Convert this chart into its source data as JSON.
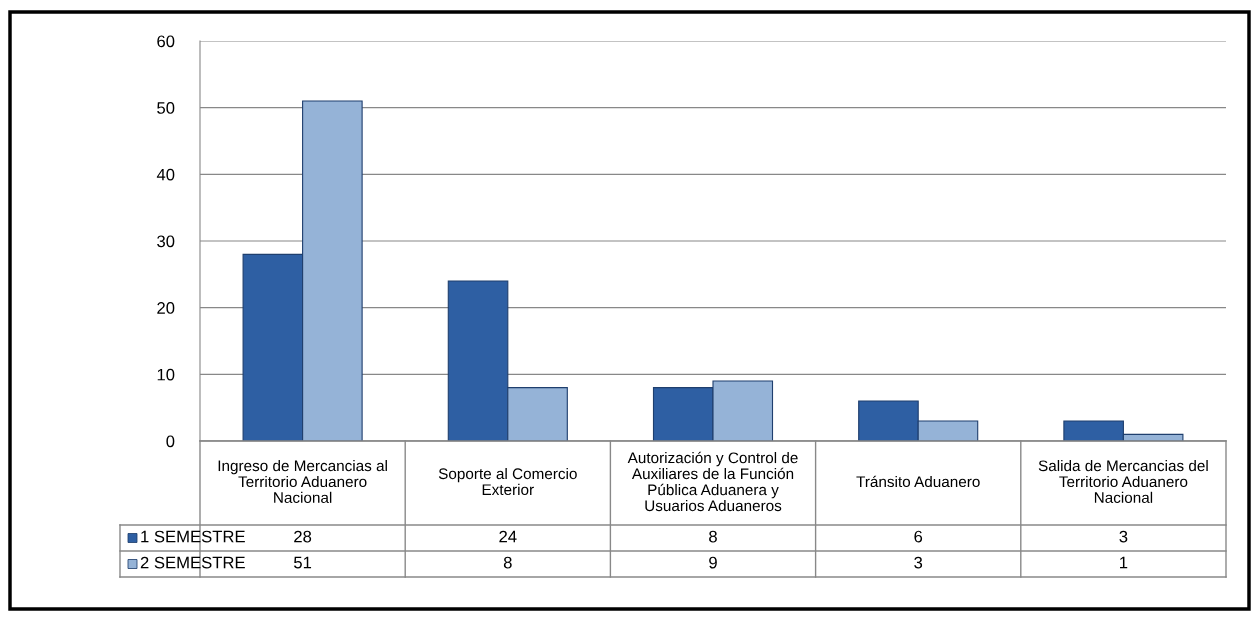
{
  "chart_data": {
    "type": "bar",
    "categories": [
      "Ingreso de Mercancias al Territorio Aduanero Nacional",
      "Soporte al Comercio Exterior",
      "Autorización y Control de Auxiliares de la Función Pública Aduanera y Usuarios Aduaneros",
      "Tránsito Aduanero",
      "Salida de Mercancias del Territorio Aduanero Nacional"
    ],
    "series": [
      {
        "name": "1 SEMESTRE",
        "color": "#2e5fa3",
        "values": [
          28,
          24,
          8,
          6,
          3
        ]
      },
      {
        "name": "2 SEMESTRE",
        "color": "#95b3d7",
        "values": [
          51,
          8,
          9,
          3,
          1
        ]
      }
    ],
    "ylim": [
      0,
      60
    ],
    "yticks": [
      0,
      10,
      20,
      30,
      40,
      50,
      60
    ],
    "grid": "y",
    "data_labels": true,
    "legend": "bottom left"
  }
}
